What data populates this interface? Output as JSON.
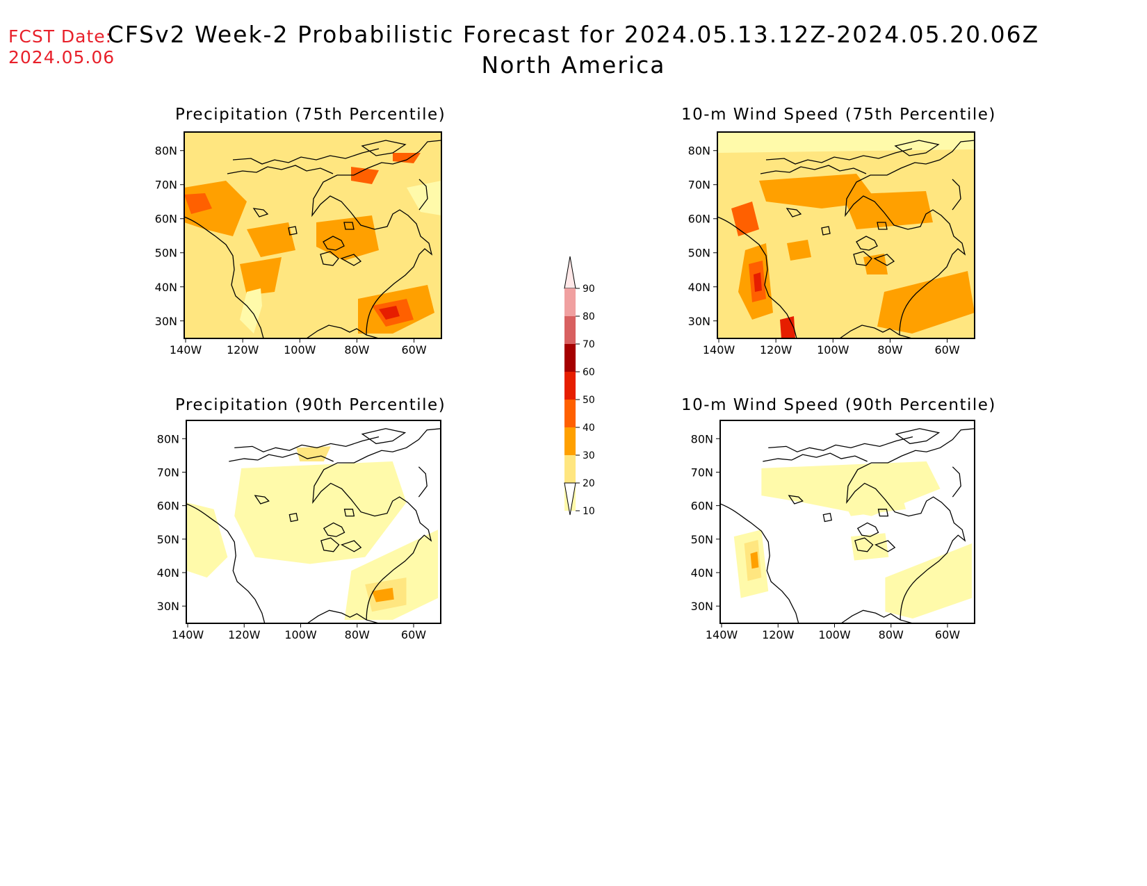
{
  "header": {
    "fcst_label": "FCST Date:",
    "fcst_date": "2024.05.06",
    "title": "CFSv2 Week-2 Probabilistic Forecast for 2024.05.13.12Z-2024.05.20.06Z",
    "subtitle": "North America"
  },
  "axes": {
    "lat_ticks": [
      "80N",
      "70N",
      "60N",
      "50N",
      "40N",
      "30N"
    ],
    "lon_ticks": [
      "140W",
      "120W",
      "100W",
      "80W",
      "60W"
    ]
  },
  "panels": [
    {
      "title": "Precipitation (75th Percentile)"
    },
    {
      "title": "10-m Wind Speed (75th Percentile)"
    },
    {
      "title": "Precipitation (90th Percentile)"
    },
    {
      "title": "10-m Wind Speed (90th Percentile)"
    }
  ],
  "colorbar": {
    "levels": [
      "10",
      "20",
      "30",
      "40",
      "50",
      "60",
      "70",
      "80",
      "90"
    ],
    "colors": [
      "#fffaaa",
      "#ffe680",
      "#ffa000",
      "#ff6000",
      "#e61e00",
      "#a50000",
      "#d86060",
      "#f0a0a0",
      "#ffe8e8"
    ]
  }
}
